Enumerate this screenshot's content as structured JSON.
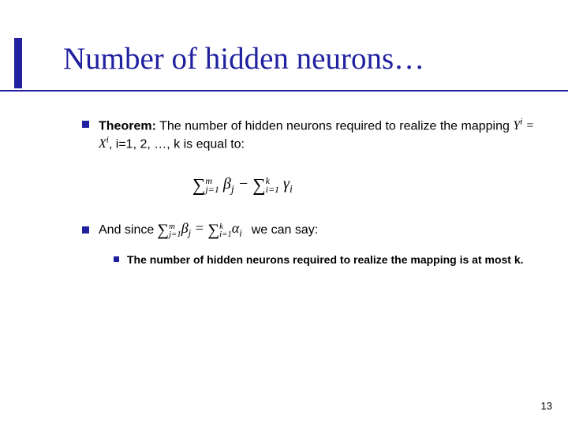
{
  "accent_color": "#2020a0",
  "background_color": "#ffffff",
  "title": "Number of hidden neurons…",
  "title_fontsize": 39,
  "title_color": "#2020a0",
  "body_fontsize": 16,
  "sub_fontsize": 14,
  "bullet1": {
    "label_bold": "Theorem:",
    "text_before_formula": " The number of hidden neurons required to realize the mapping ",
    "formula": "Y^i = X^i",
    "text_after_formula": ", i=1, 2, …, k is equal to:"
  },
  "center_formula": "∑_{j=1}^{m} β_j − ∑_{i=1}^{k} γ_i",
  "bullet2": {
    "text_before": "And since",
    "inline_formula": "∑_{j=1}^{m} β_j = ∑_{i=1}^{k} α_i",
    "text_after": "we can say:"
  },
  "sub_bullet": {
    "text": "The number of hidden neurons required to realize the mapping is at most k."
  },
  "page_number": "13"
}
